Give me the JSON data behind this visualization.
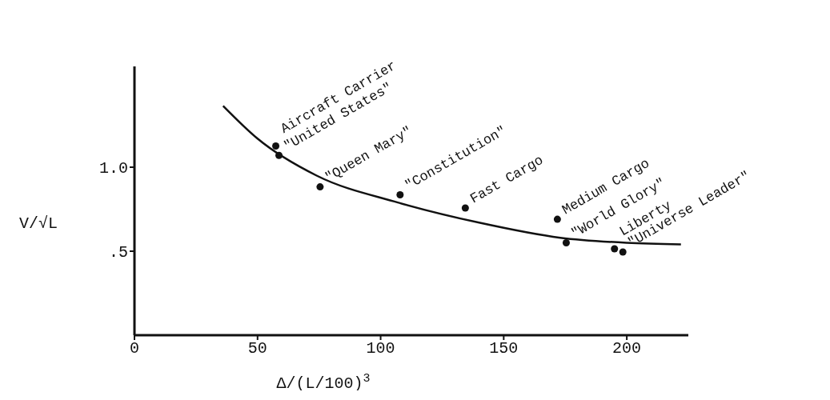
{
  "chart_data": {
    "type": "scatter",
    "xlabel": "Δ/(L/100)$^{3}$",
    "ylabel": "V/√L",
    "xlim": [
      0,
      225
    ],
    "ylim": [
      0,
      1.6
    ],
    "xticks": [
      0,
      50,
      100,
      150,
      200
    ],
    "yticks": [
      {
        "value": 0.5,
        "label": ".5"
      },
      {
        "value": 1.0,
        "label": "1.0"
      }
    ],
    "grid": false,
    "series": [
      {
        "marker": "circle",
        "color": "#111111",
        "x": [
          57.4,
          58.7,
          75.4,
          107.9,
          134.4,
          171.8,
          175.4,
          195,
          198.4
        ],
        "values": [
          1.126,
          1.07,
          0.883,
          0.836,
          0.757,
          0.69,
          0.55,
          0.514,
          0.495
        ]
      },
      {
        "type": "line",
        "color": "#111111",
        "line_style": "solid",
        "x": [
          36,
          50,
          74,
          107,
          140,
          173,
          200,
          222
        ],
        "values": [
          1.365,
          1.17,
          0.95,
          0.79,
          0.67,
          0.58,
          0.55,
          0.54
        ]
      }
    ],
    "annotations": [
      {
        "text": "Aircraft Carrier",
        "x": 57.4,
        "y": 1.126
      },
      {
        "text": "\"United States\"",
        "x": 58.7,
        "y": 1.07
      },
      {
        "text": "\"Queen Mary\"",
        "x": 75.4,
        "y": 0.883
      },
      {
        "text": "\"Constitution\"",
        "x": 107.9,
        "y": 0.836
      },
      {
        "text": "Fast Cargo",
        "x": 134.4,
        "y": 0.757
      },
      {
        "text": "Medium Cargo",
        "x": 171.8,
        "y": 0.69
      },
      {
        "text": "\"World Glory\"",
        "x": 175.4,
        "y": 0.55
      },
      {
        "text": "Liberty",
        "x": 195,
        "y": 0.514
      },
      {
        "text": "\"Universe Leader\"",
        "x": 198.4,
        "y": 0.495
      }
    ]
  }
}
